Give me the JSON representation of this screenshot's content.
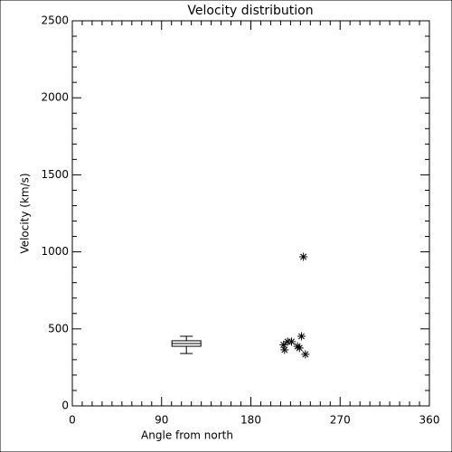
{
  "chart_data": {
    "type": "scatter",
    "title": "Velocity distribution",
    "x_label": "Angle from north",
    "y_label": "Velocity (km/s)",
    "x": [
      213,
      214,
      217,
      221,
      227,
      229,
      231,
      235,
      233
    ],
    "values": [
      397,
      364,
      417,
      417,
      387,
      376,
      452,
      335,
      968
    ],
    "color": "#000000",
    "box": {
      "position": 115,
      "whisker_low": 340,
      "q1": 387,
      "median": 405,
      "q3": 423,
      "whisker_high": 452
    },
    "xlim": [
      0,
      360
    ],
    "xticks": [
      0,
      90,
      180,
      270,
      360
    ],
    "xminor": 9,
    "ylim": [
      0,
      2500
    ],
    "yticks": [
      0,
      500,
      1000,
      1500,
      2000,
      2500
    ],
    "yminor": 5,
    "grid": false
  }
}
